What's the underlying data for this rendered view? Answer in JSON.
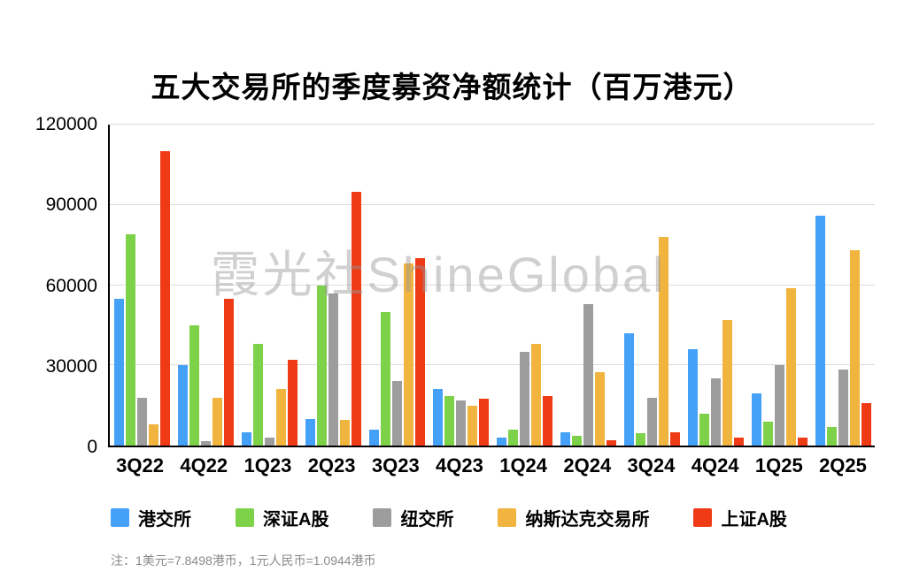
{
  "watermark": "霞光社ShineGlobal",
  "note": "注：1美元=7.8498港币，1元人民币=1.0944港币",
  "chart_data": {
    "type": "bar",
    "title": "五大交易所的季度募资净额统计（百万港元）",
    "categories": [
      "3Q22",
      "4Q22",
      "1Q23",
      "2Q23",
      "3Q23",
      "4Q23",
      "1Q24",
      "2Q24",
      "3Q24",
      "4Q24",
      "1Q25",
      "2Q25"
    ],
    "series": [
      {
        "name": "港交所",
        "color": "#45A1F7",
        "values": [
          55000,
          30000,
          5000,
          10000,
          6000,
          21000,
          3000,
          5000,
          42000,
          36000,
          19500,
          86000
        ]
      },
      {
        "name": "深证A股",
        "color": "#7ED249",
        "values": [
          79000,
          45000,
          38000,
          60000,
          50000,
          18500,
          6000,
          3500,
          4500,
          12000,
          9000,
          7000
        ]
      },
      {
        "name": "纽交所",
        "color": "#9D9D9D",
        "values": [
          18000,
          1500,
          3000,
          57000,
          24000,
          17000,
          35000,
          53000,
          18000,
          25000,
          30000,
          28500
        ]
      },
      {
        "name": "纳斯达克交易所",
        "color": "#F0B43F",
        "values": [
          8000,
          18000,
          21000,
          9500,
          68000,
          15000,
          38000,
          27500,
          78000,
          47000,
          59000,
          73000
        ]
      },
      {
        "name": "上证A股",
        "color": "#EE3B15",
        "values": [
          110000,
          55000,
          32000,
          95000,
          70000,
          17500,
          18500,
          2000,
          5000,
          3000,
          3000,
          16000
        ]
      }
    ],
    "ylim": [
      0,
      120000
    ],
    "yticks": [
      0,
      30000,
      60000,
      90000,
      120000
    ],
    "grid": true,
    "legend_position": "bottom"
  }
}
